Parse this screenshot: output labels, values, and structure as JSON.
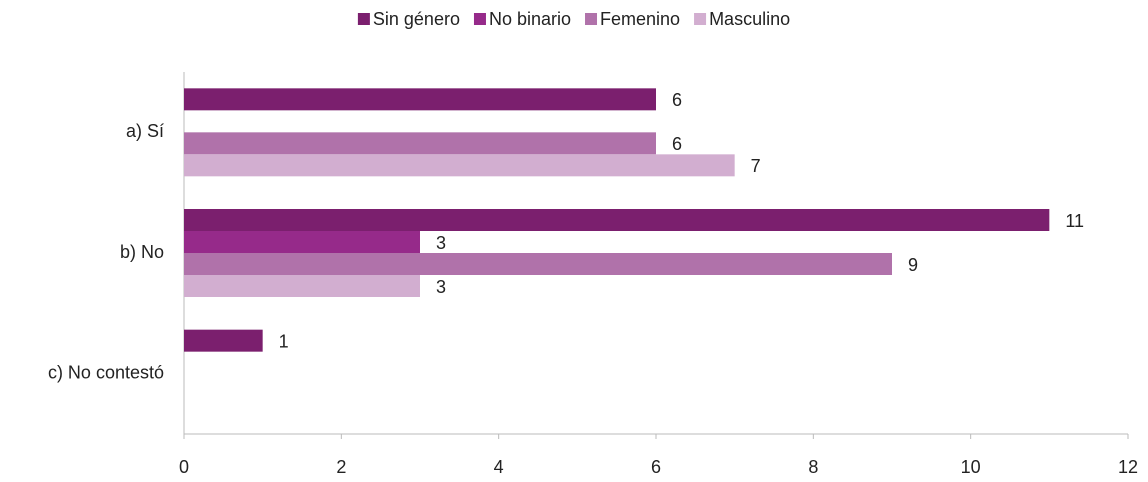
{
  "chart_data": {
    "type": "hbar",
    "categories": [
      "a) Sí",
      "b) No",
      "c) No contestó"
    ],
    "series": [
      {
        "name": "Sin género",
        "color": "#7b1f6e",
        "values": [
          6,
          11,
          1
        ]
      },
      {
        "name": "No binario",
        "color": "#962a8a",
        "values": [
          null,
          3,
          null
        ]
      },
      {
        "name": "Femenino",
        "color": "#b072aa",
        "values": [
          6,
          9,
          null
        ]
      },
      {
        "name": "Masculino",
        "color": "#d2aed0",
        "values": [
          7,
          3,
          null
        ]
      }
    ],
    "xlim": [
      0,
      12
    ],
    "xticks": [
      0,
      2,
      4,
      6,
      8,
      10,
      12
    ],
    "legend": "top",
    "grid": false
  }
}
